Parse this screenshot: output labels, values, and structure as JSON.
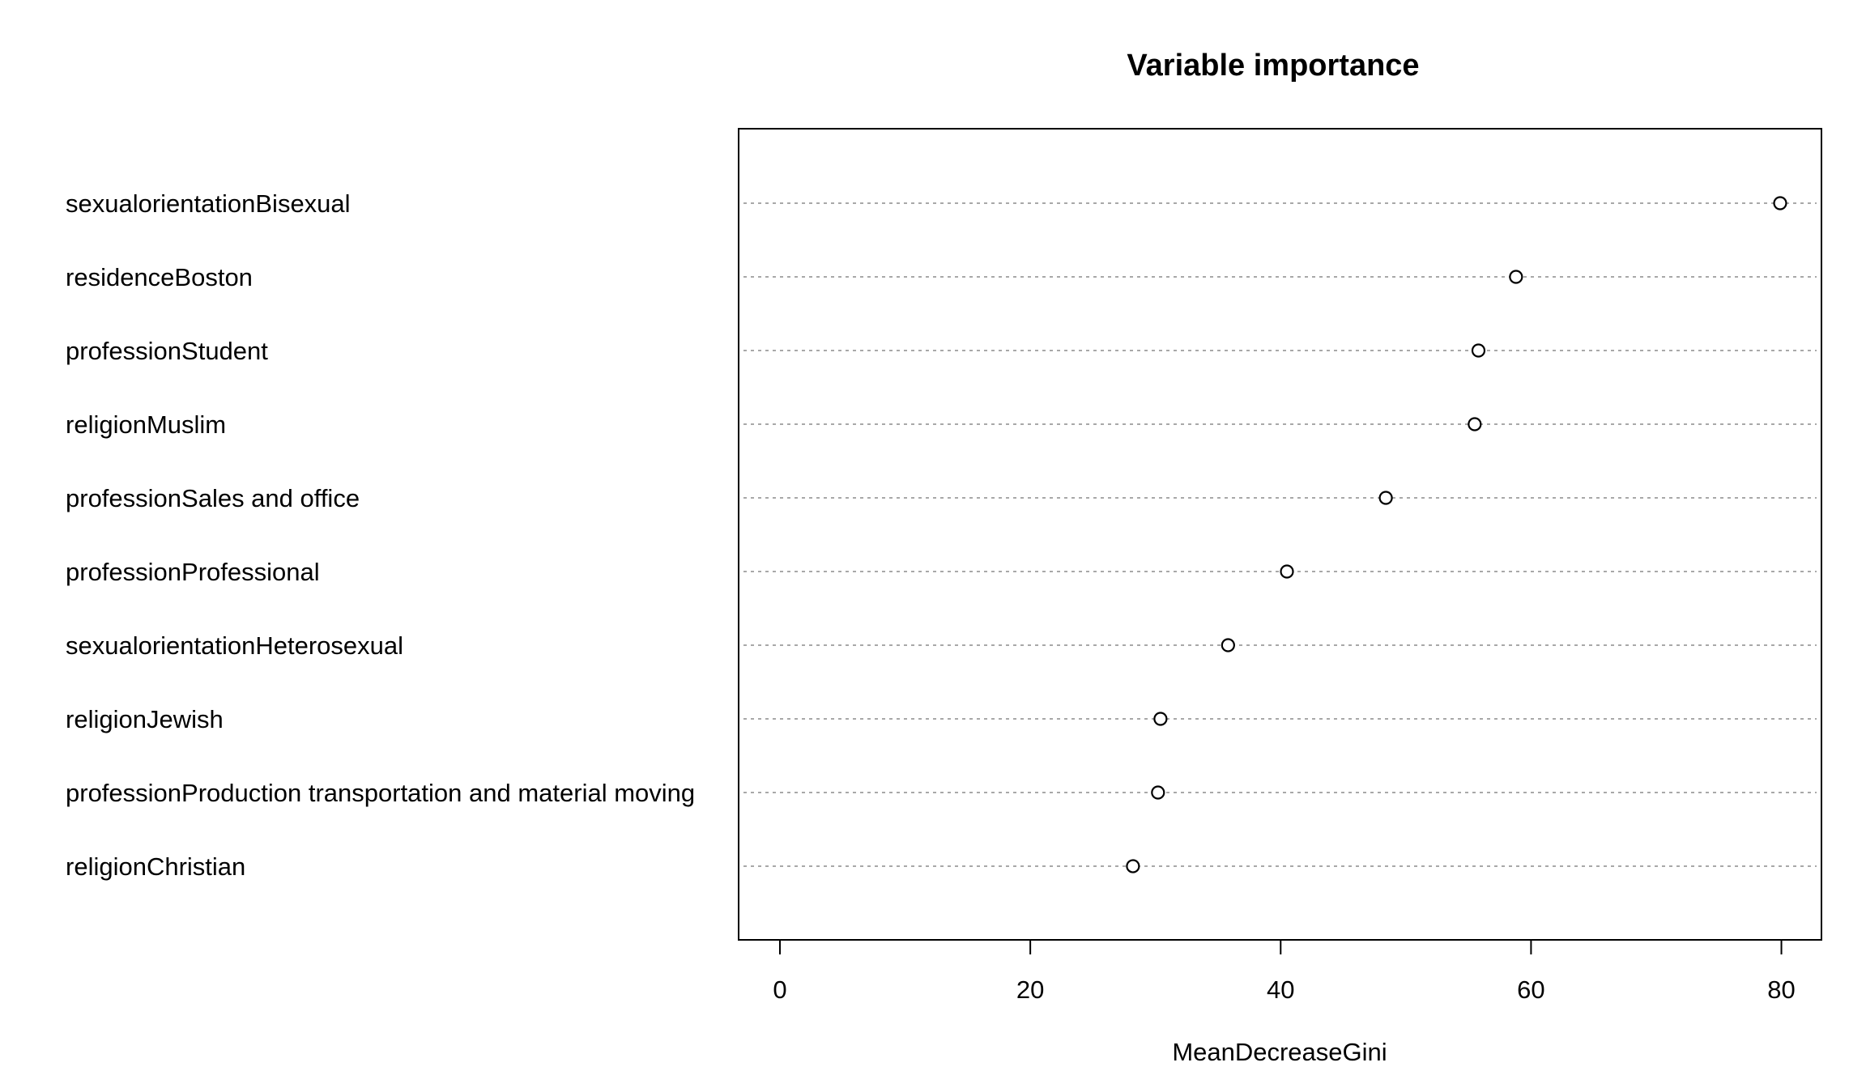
{
  "chart_data": {
    "type": "scatter",
    "title": "Variable importance",
    "xlabel": "MeanDecreaseGini",
    "ylabel": "",
    "xlim": [
      -3.3,
      83.2
    ],
    "xticks": [
      0,
      20,
      40,
      60,
      80
    ],
    "grid": "dotted horizontal lines per variable",
    "categories": [
      "sexualorientationBisexual",
      "residenceBoston",
      "professionStudent",
      "religionMuslim",
      "professionSales and office",
      "professionProfessional",
      "sexualorientationHeterosexual",
      "religionJewish",
      "professionProduction transportation and material moving",
      "religionChristian"
    ],
    "values": [
      79.9,
      58.8,
      55.8,
      55.5,
      48.4,
      40.5,
      35.8,
      30.4,
      30.2,
      28.2
    ]
  }
}
